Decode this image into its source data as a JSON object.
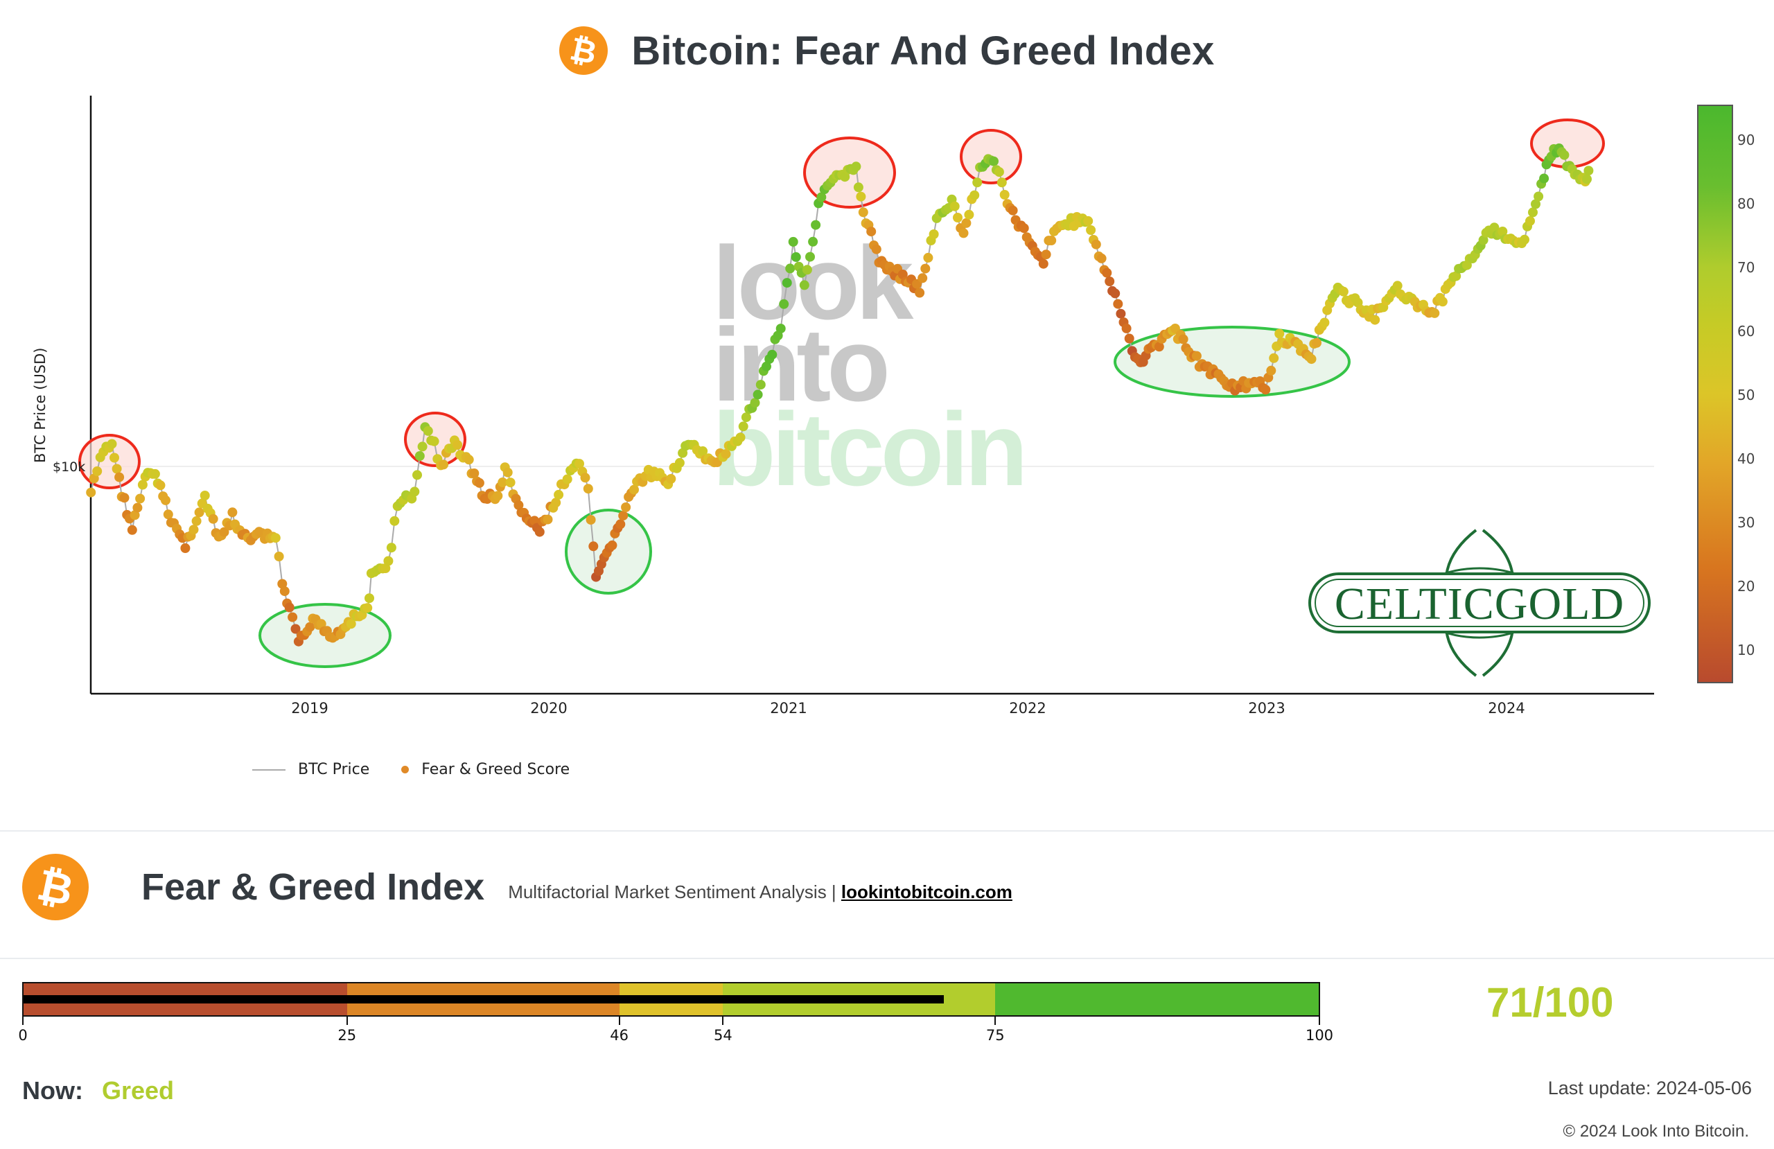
{
  "header": {
    "title": "Bitcoin: Fear And Greed Index",
    "logo_icon": "bitcoin-icon",
    "logo_glyph": "₿"
  },
  "chart_data": {
    "type": "scatter",
    "title": "Bitcoin: Fear And Greed Index",
    "xlabel": "",
    "ylabel": "BTC Price (USD)",
    "y_scale": "log",
    "y_ticks": [
      "$10k"
    ],
    "x_ticks": [
      "2019",
      "2020",
      "2021",
      "2022",
      "2023",
      "2024"
    ],
    "grid": false,
    "legend": [
      {
        "name": "BTC Price",
        "type": "line",
        "color": "#aaaaaa"
      },
      {
        "name": "Fear & Greed Score",
        "type": "marker",
        "color": "#e08a28"
      }
    ],
    "legend_position": "bottom-left",
    "colorbar": {
      "ticks": [
        10,
        20,
        30,
        40,
        50,
        60,
        70,
        80,
        90
      ],
      "range": [
        5,
        96
      ],
      "colors": [
        "#b84a2e",
        "#d8761f",
        "#e2a628",
        "#dcc528",
        "#c6cb26",
        "#afcc2d",
        "#56bc2f",
        "#4bb82e"
      ]
    },
    "series": [
      {
        "name": "BTC Price / Fear & Greed Score",
        "points": [
          {
            "date": "2018-02-01",
            "price": 8500,
            "score": 40
          },
          {
            "date": "2018-02-20",
            "price": 11000,
            "score": 55
          },
          {
            "date": "2018-03-05",
            "price": 11500,
            "score": 62
          },
          {
            "date": "2018-03-20",
            "price": 8500,
            "score": 30
          },
          {
            "date": "2018-04-05",
            "price": 6800,
            "score": 25
          },
          {
            "date": "2018-04-25",
            "price": 9300,
            "score": 55
          },
          {
            "date": "2018-05-10",
            "price": 9600,
            "score": 58
          },
          {
            "date": "2018-05-30",
            "price": 7500,
            "score": 35
          },
          {
            "date": "2018-06-25",
            "price": 6100,
            "score": 25
          },
          {
            "date": "2018-07-25",
            "price": 8200,
            "score": 55
          },
          {
            "date": "2018-08-15",
            "price": 6300,
            "score": 28
          },
          {
            "date": "2018-09-05",
            "price": 7300,
            "score": 40
          },
          {
            "date": "2018-09-20",
            "price": 6400,
            "score": 32
          },
          {
            "date": "2018-10-20",
            "price": 6500,
            "score": 38
          },
          {
            "date": "2018-11-10",
            "price": 6400,
            "score": 52
          },
          {
            "date": "2018-11-20",
            "price": 4800,
            "score": 25
          },
          {
            "date": "2018-12-01",
            "price": 4100,
            "score": 18
          },
          {
            "date": "2018-12-15",
            "price": 3300,
            "score": 15
          },
          {
            "date": "2019-01-10",
            "price": 3900,
            "score": 35
          },
          {
            "date": "2019-02-05",
            "price": 3450,
            "score": 25
          },
          {
            "date": "2019-03-01",
            "price": 3800,
            "score": 45
          },
          {
            "date": "2019-03-30",
            "price": 4100,
            "score": 58
          },
          {
            "date": "2019-04-05",
            "price": 5000,
            "score": 62
          },
          {
            "date": "2019-05-01",
            "price": 5500,
            "score": 58
          },
          {
            "date": "2019-05-15",
            "price": 7800,
            "score": 68
          },
          {
            "date": "2019-06-10",
            "price": 8500,
            "score": 70
          },
          {
            "date": "2019-06-26",
            "price": 12800,
            "score": 80
          },
          {
            "date": "2019-07-10",
            "price": 11500,
            "score": 60
          },
          {
            "date": "2019-07-20",
            "price": 10000,
            "score": 40
          },
          {
            "date": "2019-08-10",
            "price": 11600,
            "score": 55
          },
          {
            "date": "2019-09-01",
            "price": 10200,
            "score": 40
          },
          {
            "date": "2019-09-25",
            "price": 8200,
            "score": 22
          },
          {
            "date": "2019-10-15",
            "price": 8300,
            "score": 35
          },
          {
            "date": "2019-10-26",
            "price": 9800,
            "score": 50
          },
          {
            "date": "2019-11-20",
            "price": 7500,
            "score": 25
          },
          {
            "date": "2019-12-18",
            "price": 6700,
            "score": 20
          },
          {
            "date": "2020-01-20",
            "price": 8700,
            "score": 50
          },
          {
            "date": "2020-02-12",
            "price": 10300,
            "score": 60
          },
          {
            "date": "2020-03-01",
            "price": 8700,
            "score": 40
          },
          {
            "date": "2020-03-13",
            "price": 4900,
            "score": 10
          },
          {
            "date": "2020-04-15",
            "price": 6800,
            "score": 20
          },
          {
            "date": "2020-05-10",
            "price": 8800,
            "score": 40
          },
          {
            "date": "2020-06-01",
            "price": 9500,
            "score": 50
          },
          {
            "date": "2020-07-01",
            "price": 9200,
            "score": 45
          },
          {
            "date": "2020-08-01",
            "price": 11500,
            "score": 70
          },
          {
            "date": "2020-09-05",
            "price": 10200,
            "score": 40
          },
          {
            "date": "2020-10-15",
            "price": 11500,
            "score": 60
          },
          {
            "date": "2020-11-15",
            "price": 16000,
            "score": 85
          },
          {
            "date": "2020-12-20",
            "price": 24000,
            "score": 92
          },
          {
            "date": "2021-01-08",
            "price": 40000,
            "score": 90
          },
          {
            "date": "2021-01-25",
            "price": 31000,
            "score": 75
          },
          {
            "date": "2021-02-20",
            "price": 55000,
            "score": 90
          },
          {
            "date": "2021-03-15",
            "price": 60000,
            "score": 75
          },
          {
            "date": "2021-04-14",
            "price": 63000,
            "score": 72
          },
          {
            "date": "2021-04-25",
            "price": 49000,
            "score": 45
          },
          {
            "date": "2021-05-19",
            "price": 36000,
            "score": 20
          },
          {
            "date": "2021-06-20",
            "price": 33000,
            "score": 25
          },
          {
            "date": "2021-07-20",
            "price": 30000,
            "score": 22
          },
          {
            "date": "2021-08-15",
            "price": 46000,
            "score": 70
          },
          {
            "date": "2021-09-07",
            "price": 52000,
            "score": 75
          },
          {
            "date": "2021-09-25",
            "price": 42000,
            "score": 30
          },
          {
            "date": "2021-10-20",
            "price": 64000,
            "score": 80
          },
          {
            "date": "2021-11-10",
            "price": 68000,
            "score": 80
          },
          {
            "date": "2021-12-05",
            "price": 49000,
            "score": 25
          },
          {
            "date": "2022-01-25",
            "price": 36000,
            "score": 20
          },
          {
            "date": "2022-02-10",
            "price": 44000,
            "score": 45
          },
          {
            "date": "2022-03-30",
            "price": 47000,
            "score": 60
          },
          {
            "date": "2022-05-10",
            "price": 30000,
            "score": 12
          },
          {
            "date": "2022-06-18",
            "price": 19000,
            "score": 8
          },
          {
            "date": "2022-08-10",
            "price": 23500,
            "score": 40
          },
          {
            "date": "2022-09-20",
            "price": 19000,
            "score": 25
          },
          {
            "date": "2022-11-09",
            "price": 16500,
            "score": 22
          },
          {
            "date": "2022-12-30",
            "price": 16500,
            "score": 28
          },
          {
            "date": "2023-01-20",
            "price": 22500,
            "score": 50
          },
          {
            "date": "2023-03-10",
            "price": 20000,
            "score": 35
          },
          {
            "date": "2023-04-15",
            "price": 30000,
            "score": 65
          },
          {
            "date": "2023-06-15",
            "price": 25500,
            "score": 45
          },
          {
            "date": "2023-07-15",
            "price": 30500,
            "score": 60
          },
          {
            "date": "2023-09-10",
            "price": 25800,
            "score": 42
          },
          {
            "date": "2023-10-25",
            "price": 34500,
            "score": 70
          },
          {
            "date": "2023-12-10",
            "price": 43500,
            "score": 75
          },
          {
            "date": "2024-01-25",
            "price": 40000,
            "score": 55
          },
          {
            "date": "2024-02-28",
            "price": 61000,
            "score": 82
          },
          {
            "date": "2024-03-14",
            "price": 73000,
            "score": 88
          },
          {
            "date": "2024-04-15",
            "price": 63000,
            "score": 70
          },
          {
            "date": "2024-05-01",
            "price": 58000,
            "score": 60
          },
          {
            "date": "2024-05-06",
            "price": 63000,
            "score": 71
          }
        ]
      }
    ],
    "annotations": {
      "greed_peaks_red_ellipses": [
        "2018-03",
        "2019-06",
        "2021-03",
        "2021-11",
        "2024-03"
      ],
      "fear_bottoms_green_ellipses": [
        "2018-12",
        "2020-03",
        "2022-06 to 2023-01"
      ]
    },
    "watermarks": [
      "look",
      "into",
      "bitcoin",
      "CELTICGOLD"
    ]
  },
  "legend": {
    "btc_price": "BTC Price",
    "fg_score": "Fear & Greed Score"
  },
  "axes": {
    "ylabel": "BTC Price (USD)",
    "ytick_10k": "$10k",
    "xticks": [
      "2019",
      "2020",
      "2021",
      "2022",
      "2023",
      "2024"
    ],
    "colorbar_ticks": [
      "90",
      "80",
      "70",
      "60",
      "50",
      "40",
      "30",
      "20",
      "10"
    ]
  },
  "watermark": {
    "line1": "look",
    "line2": "into",
    "line3": "bitcoin",
    "celtic": "CELTICGOLD"
  },
  "index_panel": {
    "title": "Fear & Greed Index",
    "subtitle": "Multifactorial Market Sentiment Analysis |",
    "link": "lookintobitcoin.com",
    "gauge": {
      "value": 71,
      "segments": [
        {
          "from": 0,
          "to": 25,
          "color": "#b84e2e"
        },
        {
          "from": 25,
          "to": 46,
          "color": "#dc8626"
        },
        {
          "from": 46,
          "to": 54,
          "color": "#dfc22b"
        },
        {
          "from": 54,
          "to": 75,
          "color": "#b2cd2d"
        },
        {
          "from": 75,
          "to": 100,
          "color": "#50b92f"
        }
      ],
      "ticks": [
        "0",
        "25",
        "46",
        "54",
        "75",
        "100"
      ]
    },
    "score_text": "71/100",
    "now_label": "Now:",
    "now_value": "Greed",
    "last_update": "Last update: 2024-05-06",
    "copyright": "© 2024 Look Into Bitcoin."
  }
}
